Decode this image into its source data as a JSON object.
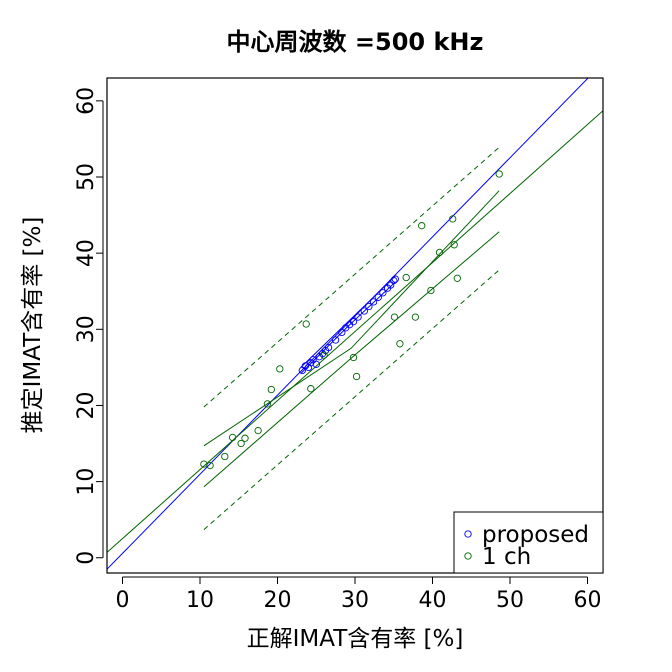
{
  "chart_data": {
    "type": "scatter",
    "title": "中心周波数 =500 kHz",
    "xlabel": "正解IMAT含有率 [%]",
    "ylabel": "推定IMAT含有率 [%]",
    "xlim": [
      -2,
      62
    ],
    "ylim": [
      -2,
      63
    ],
    "xticks": [
      0,
      10,
      20,
      30,
      40,
      50,
      60
    ],
    "yticks": [
      0,
      10,
      20,
      30,
      40,
      50,
      60
    ],
    "legend": {
      "position": "bottom-right"
    },
    "colors": {
      "proposed": "#0000ff",
      "1ch": "#006400",
      "axis": "#000000"
    },
    "series": [
      {
        "name": "proposed",
        "color": "#0000ff",
        "points": [
          [
            23.2,
            24.6
          ],
          [
            23.6,
            25.2
          ],
          [
            24.0,
            25.0
          ],
          [
            24.3,
            25.6
          ],
          [
            24.6,
            26.0
          ],
          [
            25.0,
            25.4
          ],
          [
            25.4,
            26.4
          ],
          [
            25.8,
            26.8
          ],
          [
            26.2,
            27.2
          ],
          [
            26.6,
            27.6
          ],
          [
            27.5,
            28.6
          ],
          [
            28.3,
            29.6
          ],
          [
            28.8,
            30.2
          ],
          [
            29.3,
            30.6
          ],
          [
            29.8,
            31.0
          ],
          [
            30.4,
            31.6
          ],
          [
            31.2,
            32.4
          ],
          [
            31.8,
            33.0
          ],
          [
            32.4,
            33.6
          ],
          [
            33.0,
            34.2
          ],
          [
            33.6,
            34.8
          ],
          [
            34.2,
            35.4
          ],
          [
            34.6,
            35.8
          ],
          [
            35.0,
            36.4
          ],
          [
            35.2,
            36.6
          ]
        ],
        "fit_line": [
          [
            -2,
            -1.5
          ],
          [
            62,
            65
          ]
        ],
        "ci_lower": [
          [
            23.0,
            24.2
          ],
          [
            29.0,
            30.3
          ],
          [
            35.2,
            36.2
          ]
        ],
        "ci_upper": [
          [
            23.0,
            25.0
          ],
          [
            29.0,
            30.9
          ],
          [
            35.2,
            37.0
          ]
        ]
      },
      {
        "name": "1 ch",
        "color": "#006400",
        "points": [
          [
            10.5,
            12.3
          ],
          [
            11.3,
            12.1
          ],
          [
            13.2,
            13.3
          ],
          [
            14.2,
            15.8
          ],
          [
            15.3,
            15.0
          ],
          [
            15.8,
            15.7
          ],
          [
            17.5,
            16.7
          ],
          [
            18.7,
            20.2
          ],
          [
            19.2,
            22.1
          ],
          [
            20.3,
            24.8
          ],
          [
            23.7,
            30.7
          ],
          [
            24.3,
            22.2
          ],
          [
            26.0,
            26.6
          ],
          [
            29.8,
            26.3
          ],
          [
            30.2,
            23.8
          ],
          [
            35.1,
            31.6
          ],
          [
            35.8,
            28.1
          ],
          [
            36.6,
            36.8
          ],
          [
            37.8,
            31.6
          ],
          [
            38.6,
            43.6
          ],
          [
            39.8,
            35.1
          ],
          [
            40.9,
            40.1
          ],
          [
            42.6,
            44.5
          ],
          [
            42.8,
            41.1
          ],
          [
            43.2,
            36.7
          ],
          [
            48.6,
            50.4
          ]
        ],
        "fit_line": [
          [
            -2,
            0.7
          ],
          [
            62,
            58.7
          ]
        ],
        "ci_lower": [
          [
            10.5,
            9.3
          ],
          [
            29.5,
            26.2
          ],
          [
            48.6,
            42.8
          ]
        ],
        "ci_upper": [
          [
            10.5,
            14.7
          ],
          [
            29.5,
            27.5
          ],
          [
            48.6,
            48.2
          ]
        ],
        "pi_lower": [
          [
            10.5,
            3.7
          ],
          [
            48.6,
            37.8
          ]
        ],
        "pi_upper": [
          [
            10.5,
            19.8
          ],
          [
            48.6,
            53.9
          ]
        ]
      }
    ]
  }
}
